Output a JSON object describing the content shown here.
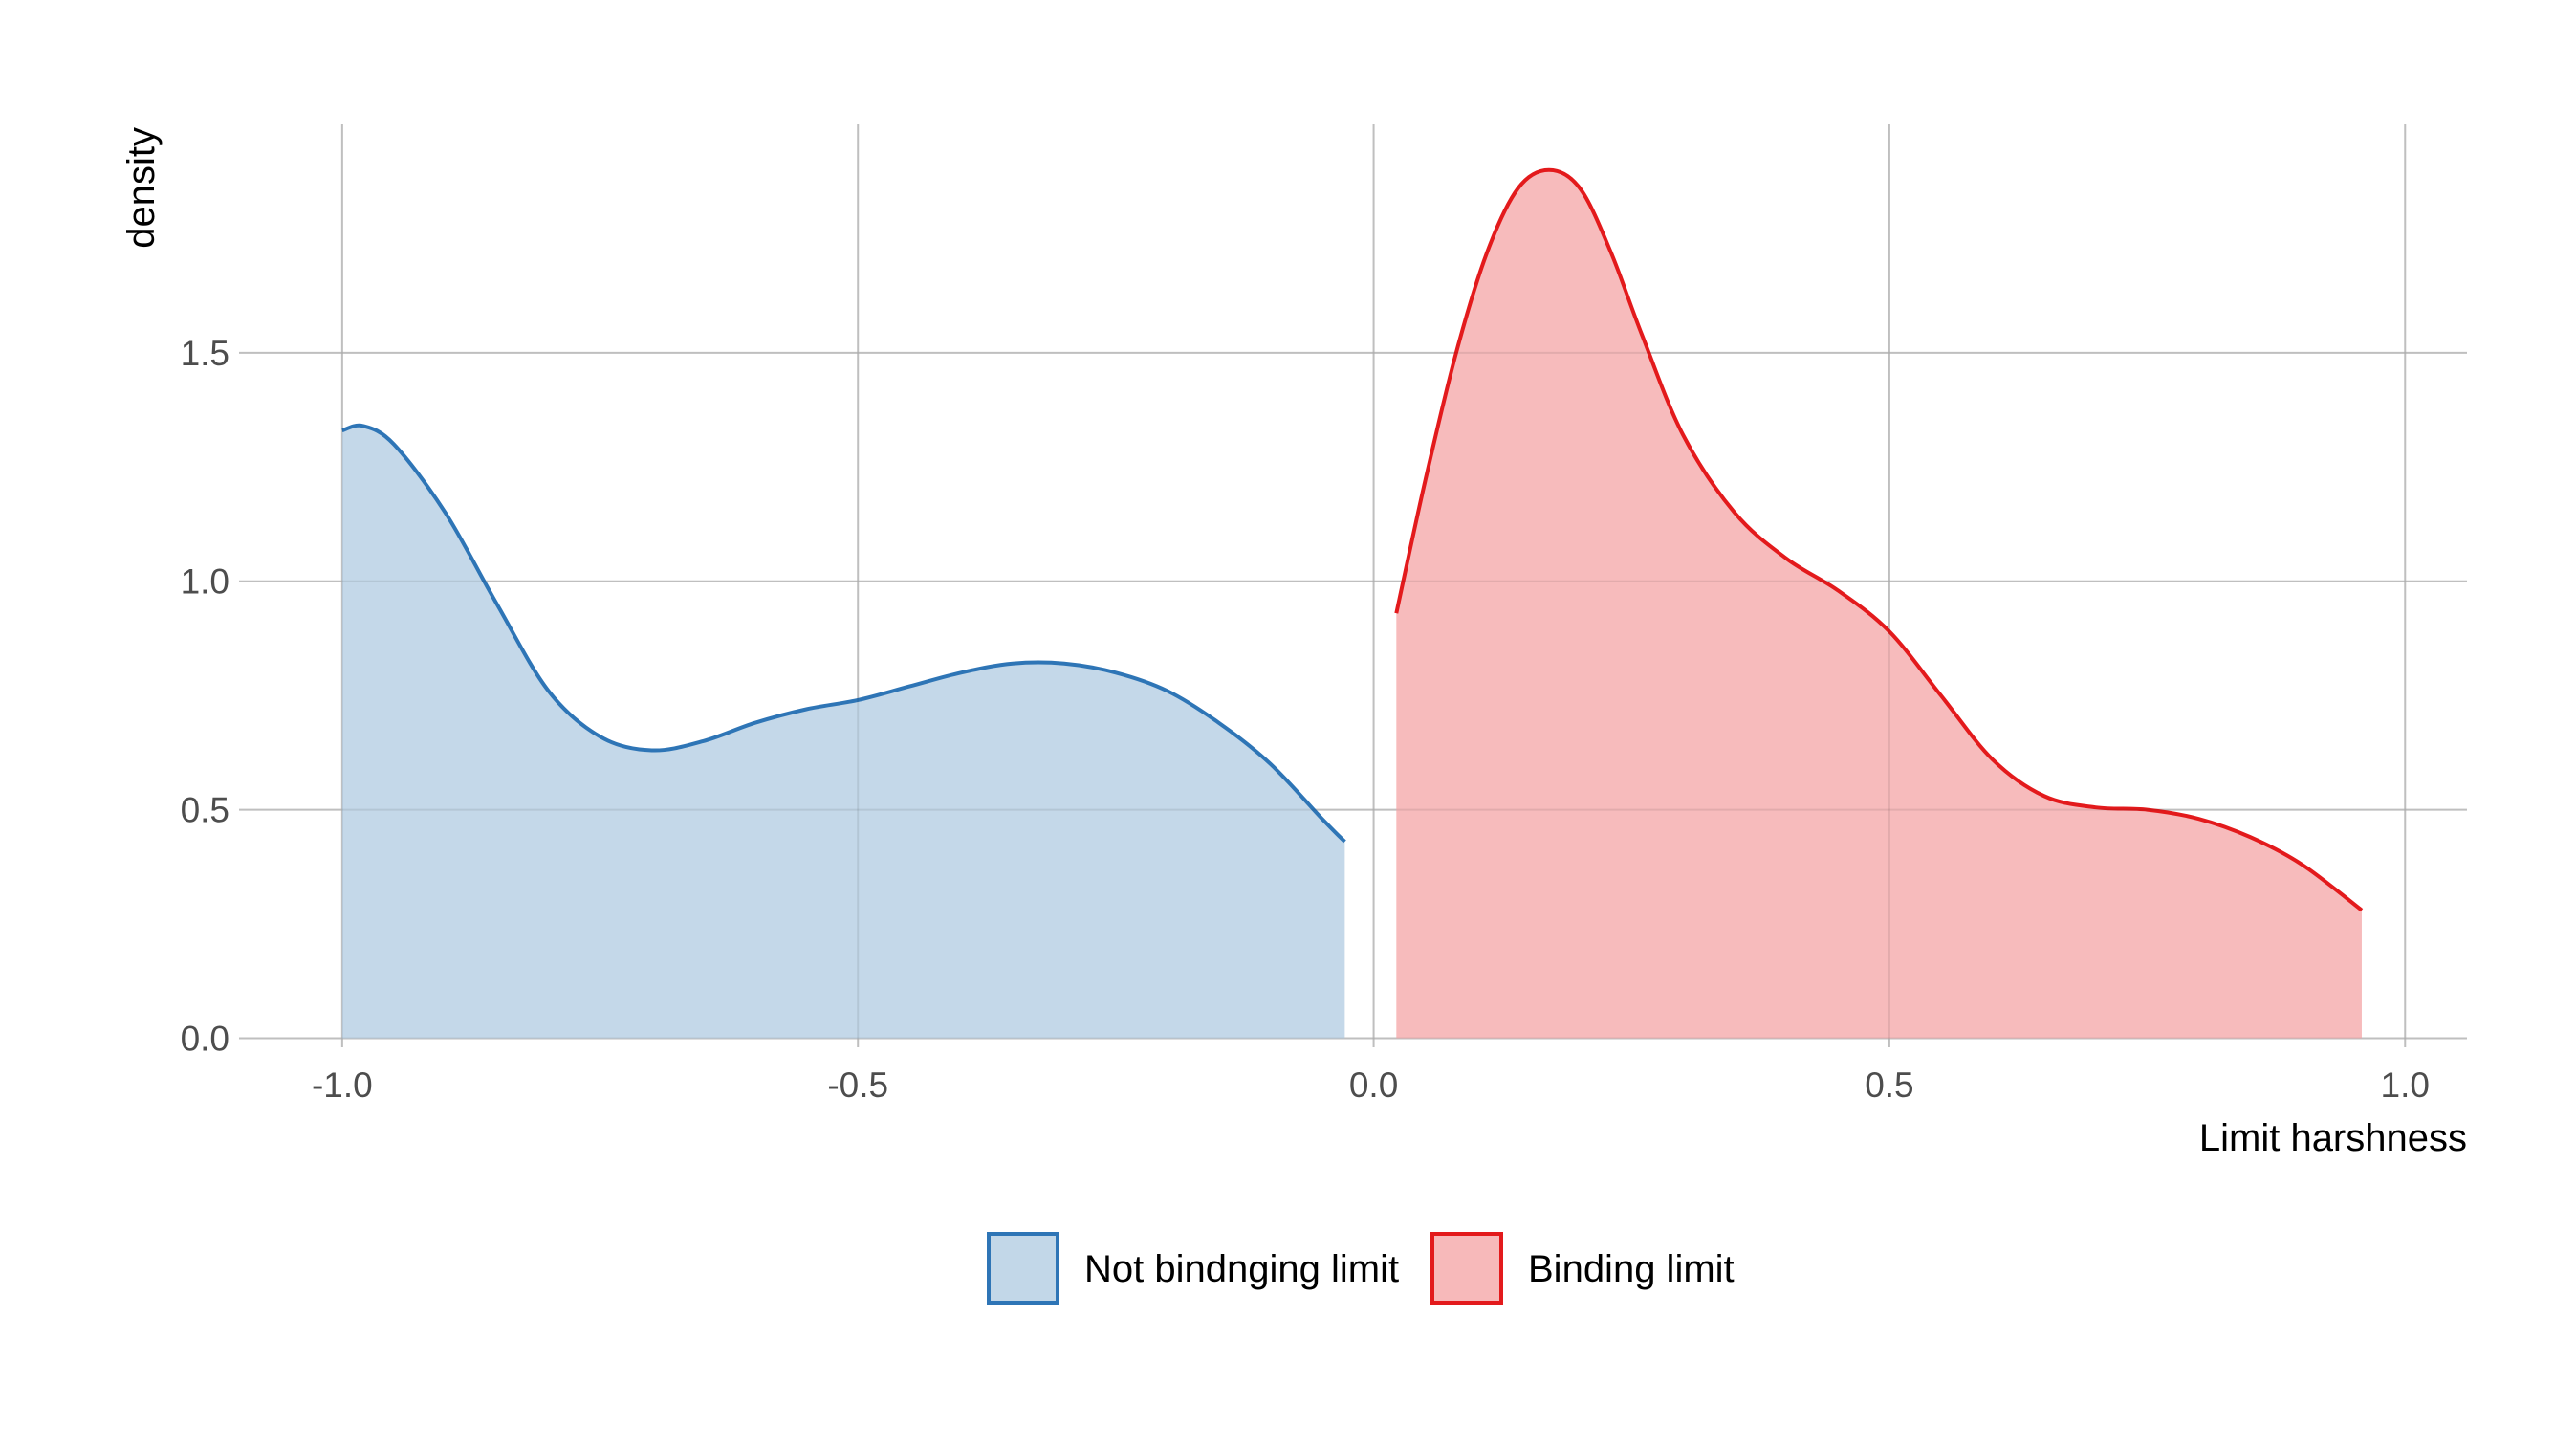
{
  "chart_data": {
    "type": "area",
    "chart_kind": "density",
    "xlabel": "Limit harshness",
    "ylabel": "density",
    "xlim": [
      -1.1,
      1.06
    ],
    "ylim": [
      -0.02,
      2.0
    ],
    "x_ticks": [
      -1.0,
      -0.5,
      0.0,
      0.5,
      1.0
    ],
    "x_tick_labels": [
      "-1.0",
      "-0.5",
      "0.0",
      "0.5",
      "1.0"
    ],
    "y_ticks": [
      0.0,
      0.5,
      1.0,
      1.5
    ],
    "y_tick_labels": [
      "0.0",
      "0.5",
      "1.0",
      "1.5"
    ],
    "grid": true,
    "legend_position": "bottom",
    "series": [
      {
        "name": "Not bindnging limit",
        "line_color": "#2e75b6",
        "fill_color": "#c2d7e8",
        "x": [
          -1.0,
          -0.98,
          -0.95,
          -0.9,
          -0.85,
          -0.8,
          -0.75,
          -0.7,
          -0.65,
          -0.6,
          -0.55,
          -0.5,
          -0.45,
          -0.4,
          -0.35,
          -0.3,
          -0.25,
          -0.2,
          -0.15,
          -0.1,
          -0.05,
          -0.028
        ],
        "y": [
          1.33,
          1.34,
          1.3,
          1.15,
          0.95,
          0.76,
          0.66,
          0.63,
          0.65,
          0.69,
          0.72,
          0.74,
          0.77,
          0.8,
          0.82,
          0.82,
          0.8,
          0.76,
          0.69,
          0.6,
          0.48,
          0.43
        ]
      },
      {
        "name": "Binding limit",
        "line_color": "#e31a1c",
        "fill_color": "#f7b9ba",
        "x": [
          0.022,
          0.05,
          0.08,
          0.11,
          0.14,
          0.17,
          0.2,
          0.23,
          0.26,
          0.3,
          0.35,
          0.4,
          0.45,
          0.5,
          0.55,
          0.6,
          0.65,
          0.7,
          0.75,
          0.8,
          0.85,
          0.9,
          0.958
        ],
        "y": [
          0.93,
          1.22,
          1.5,
          1.72,
          1.86,
          1.9,
          1.86,
          1.72,
          1.54,
          1.32,
          1.15,
          1.05,
          0.98,
          0.89,
          0.75,
          0.61,
          0.53,
          0.505,
          0.5,
          0.48,
          0.44,
          0.38,
          0.28
        ]
      }
    ]
  }
}
